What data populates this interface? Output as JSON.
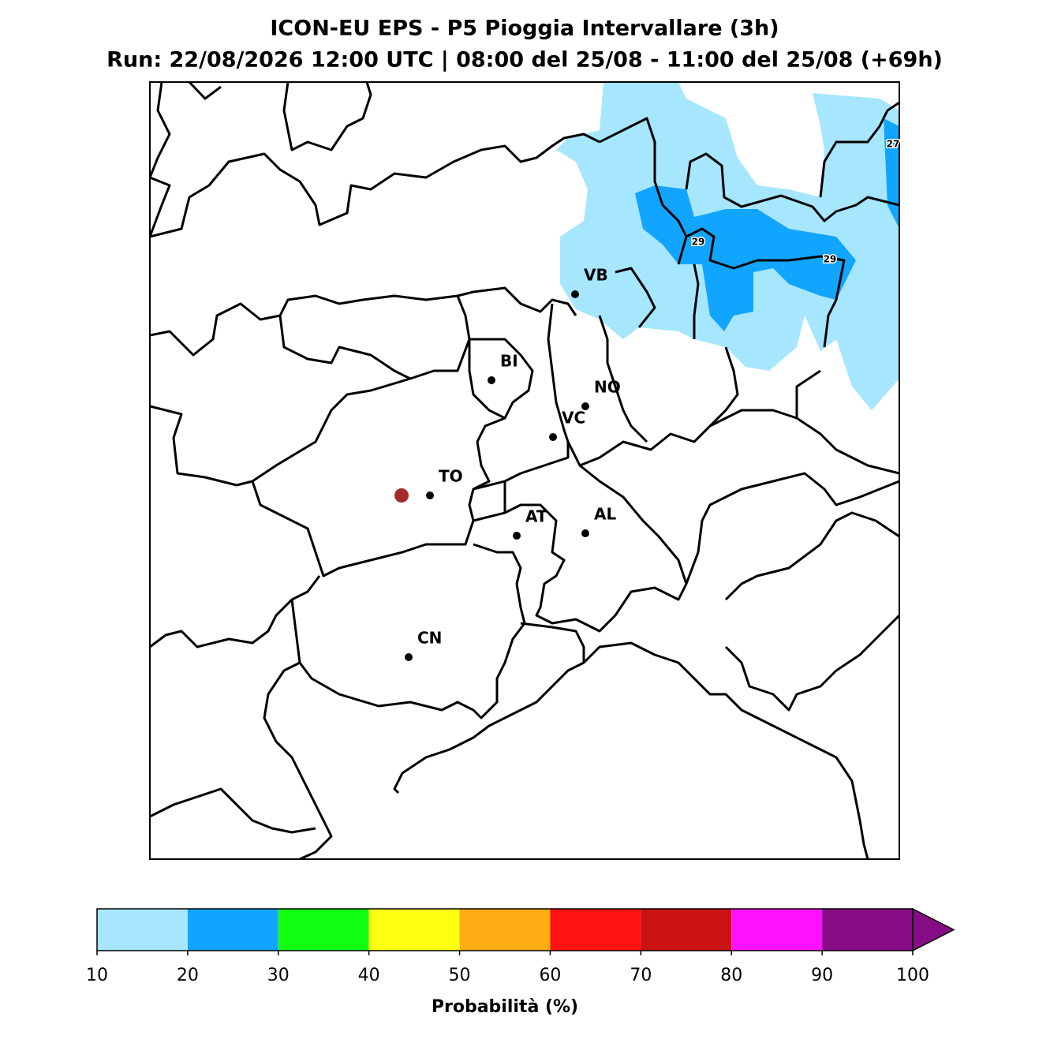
{
  "title": [
    "ICON-EU EPS - P5 Pioggia Intervallare (3h)",
    "Run: 22/08/2026 12:00 UTC | 08:00 del 25/08 - 11:00 del 25/08 (+69h)"
  ],
  "cities": [
    "VB",
    "BI",
    "NO",
    "VC",
    "TO",
    "AT",
    "AL",
    "CN"
  ],
  "contour_labels": [
    "27",
    "29",
    "29"
  ],
  "colorbar": {
    "label": "Probabilità (%)",
    "ticks": [
      10,
      20,
      30,
      40,
      50,
      60,
      70,
      80,
      90,
      100
    ],
    "colors": [
      "#a6e6ff",
      "#12a5ff",
      "#12ff12",
      "#ffff12",
      "#ffad12",
      "#ff1212",
      "#cb1212",
      "#ff12ff",
      "#870d87"
    ]
  }
}
